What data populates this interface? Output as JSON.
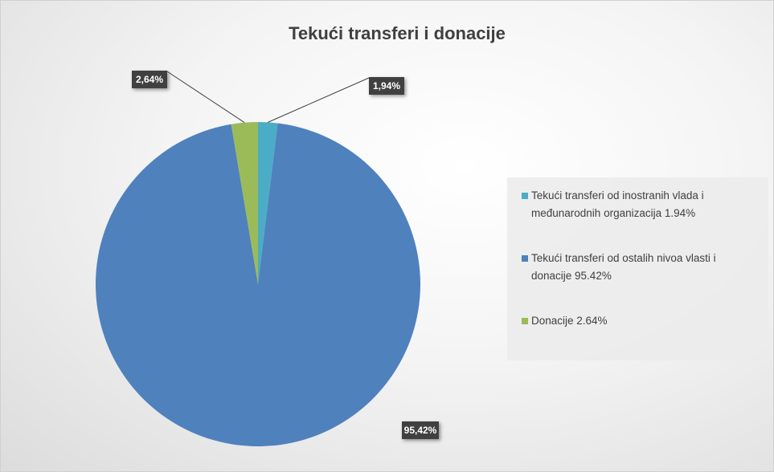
{
  "chart_data": {
    "type": "pie",
    "title": "Tekući transferi i donacije",
    "categories": [
      "Tekući transferi od inostranih vlada i međunarodnih organizacija  1.94%",
      "Tekući transferi od ostalih nivoa vlasti i donacije 95.42%",
      "Donacije  2.64%"
    ],
    "values": [
      1.94,
      95.42,
      2.64
    ],
    "value_labels": [
      "1,94%",
      "95,42%",
      "2,64%"
    ],
    "colors": [
      "#4bacc6",
      "#4f81bd",
      "#9bbb59"
    ],
    "legend": "right"
  }
}
